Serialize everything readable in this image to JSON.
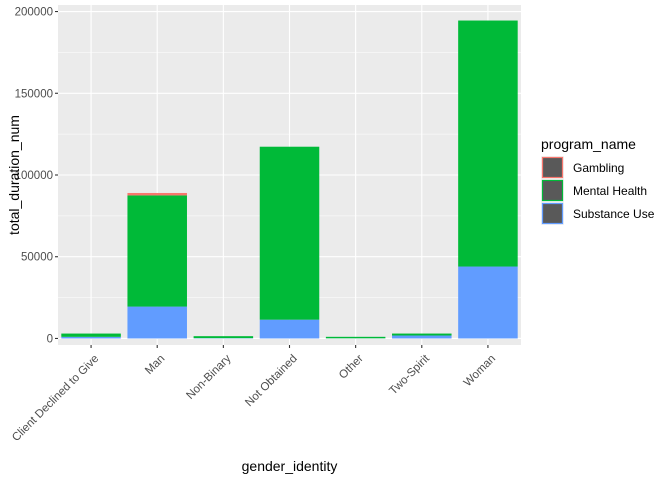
{
  "chart_data": {
    "type": "bar",
    "stacked": true,
    "xlabel": "gender_identity",
    "ylabel": "total_duration_num",
    "categories": [
      "Client Declined to Give",
      "Man",
      "Non-Binary",
      "Not Obtained",
      "Other",
      "Two-Spirit",
      "Woman"
    ],
    "series": [
      {
        "name": "Substance Use",
        "color": "#619CFF",
        "values": [
          1000,
          19500,
          200,
          11500,
          100,
          1800,
          44000
        ]
      },
      {
        "name": "Mental Health",
        "color": "#00BA38",
        "values": [
          2000,
          68000,
          1200,
          105800,
          900,
          1200,
          150500
        ]
      },
      {
        "name": "Gambling",
        "color": "#F8766D",
        "values": [
          0,
          1500,
          0,
          0,
          0,
          0,
          0
        ]
      }
    ],
    "ylim": [
      -4000,
      204000
    ],
    "yticks": [
      0,
      50000,
      100000,
      150000,
      200000
    ],
    "ytick_labels": [
      "0",
      "50000",
      "100000",
      "150000",
      "200000"
    ],
    "grid": true,
    "panel_background": "#EBEBEB",
    "legend": {
      "title": "program_name",
      "position": "right",
      "entries": [
        "Gambling",
        "Mental Health",
        "Substance Use"
      ],
      "colors": [
        "#F8766D",
        "#00BA38",
        "#619CFF"
      ],
      "key_fill": "#595959"
    }
  }
}
